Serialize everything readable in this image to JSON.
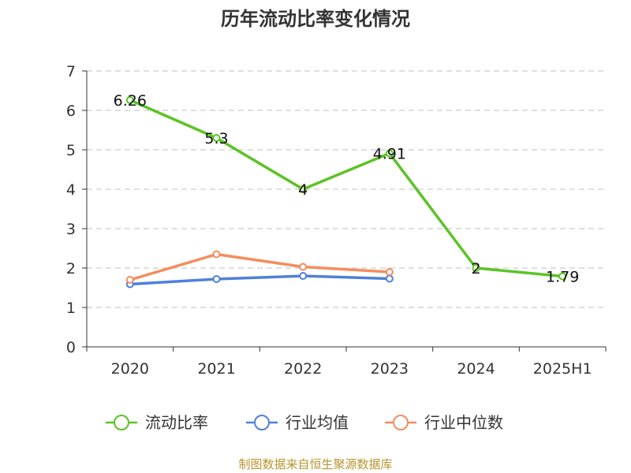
{
  "chart_data": {
    "type": "line",
    "title": "历年流动比率变化情况",
    "categories": [
      "2020",
      "2021",
      "2022",
      "2023",
      "2024",
      "2025H1"
    ],
    "ylim": [
      0,
      7
    ],
    "yticks": [
      "0",
      "1",
      "2",
      "3",
      "4",
      "5",
      "6",
      "7"
    ],
    "grid": true,
    "legend_position": "bottom",
    "series": [
      {
        "name": "流动比率",
        "color": "#5cc324",
        "values": [
          6.26,
          5.3,
          4.0,
          4.91,
          2.0,
          1.79
        ],
        "labels": [
          "6.26",
          "5.3",
          "4",
          "4.91",
          "2",
          "1.79"
        ]
      },
      {
        "name": "行业均值",
        "color": "#4f80d9",
        "values": [
          1.59,
          1.72,
          1.8,
          1.73,
          null,
          null
        ],
        "labels": []
      },
      {
        "name": "行业中位数",
        "color": "#f58d5e",
        "values": [
          1.7,
          2.35,
          2.03,
          1.9,
          null,
          null
        ],
        "labels": []
      }
    ],
    "source": "制图数据来自恒生聚源数据库"
  }
}
